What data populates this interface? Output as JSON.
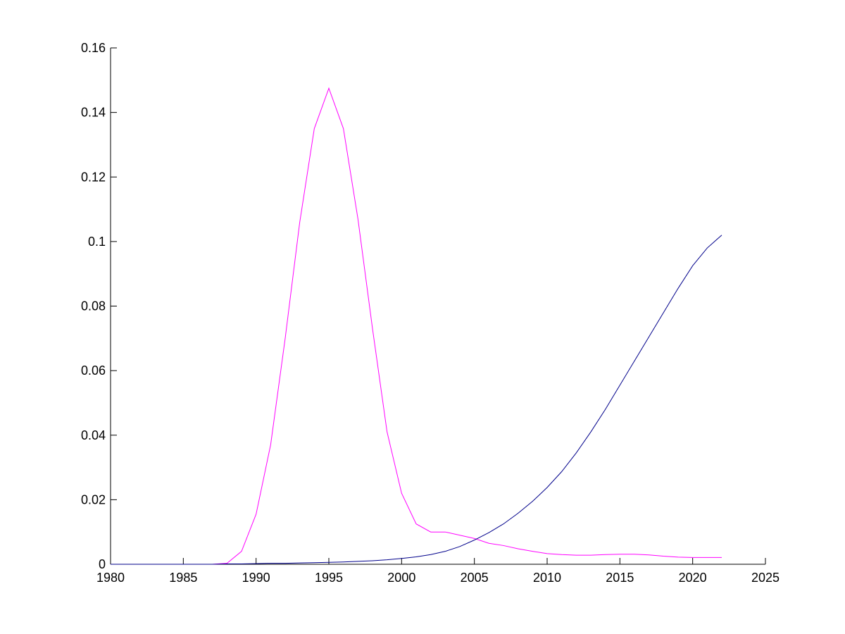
{
  "chart_data": {
    "type": "line",
    "title": "",
    "xlabel": "",
    "ylabel": "",
    "xlim": [
      1980,
      2025
    ],
    "ylim": [
      0,
      0.16
    ],
    "grid": false,
    "xticks": [
      1980,
      1985,
      1990,
      1995,
      2000,
      2005,
      2010,
      2015,
      2020,
      2025
    ],
    "xtick_labels": [
      "1980",
      "1985",
      "1990",
      "1995",
      "2000",
      "2005",
      "2010",
      "2015",
      "2020",
      "2025"
    ],
    "yticks": [
      0,
      0.02,
      0.04,
      0.06,
      0.08,
      0.1,
      0.12,
      0.14,
      0.16
    ],
    "ytick_labels": [
      "0",
      "0.02",
      "0.04",
      "0.06",
      "0.08",
      "0.1",
      "0.12",
      "0.14",
      "0.16"
    ],
    "series": [
      {
        "color": "#ff00ff",
        "x": [
          1980,
          1981,
          1982,
          1983,
          1984,
          1985,
          1986,
          1987,
          1988,
          1989,
          1990,
          1991,
          1992,
          1993,
          1994,
          1995,
          1996,
          1997,
          1998,
          1999,
          2000,
          2001,
          2002,
          2003,
          2004,
          2005,
          2006,
          2007,
          2008,
          2009,
          2010,
          2011,
          2012,
          2013,
          2014,
          2015,
          2016,
          2017,
          2018,
          2019,
          2020,
          2021,
          2022
        ],
        "y": [
          0,
          0,
          0,
          0,
          0,
          0,
          0,
          0,
          0.0003,
          0.004,
          0.0155,
          0.037,
          0.07,
          0.106,
          0.135,
          0.1475,
          0.135,
          0.107,
          0.073,
          0.041,
          0.022,
          0.0125,
          0.01,
          0.01,
          0.009,
          0.008,
          0.0065,
          0.0058,
          0.0048,
          0.004,
          0.0033,
          0.003,
          0.0028,
          0.0028,
          0.003,
          0.0031,
          0.0031,
          0.0029,
          0.0025,
          0.0022,
          0.0021,
          0.0021,
          0.0021
        ]
      },
      {
        "color": "#00008b",
        "x": [
          1980,
          1981,
          1982,
          1983,
          1984,
          1985,
          1986,
          1987,
          1988,
          1989,
          1990,
          1991,
          1992,
          1993,
          1994,
          1995,
          1996,
          1997,
          1998,
          1999,
          2000,
          2001,
          2002,
          2003,
          2004,
          2005,
          2006,
          2007,
          2008,
          2009,
          2010,
          2011,
          2012,
          2013,
          2014,
          2015,
          2016,
          2017,
          2018,
          2019,
          2020,
          2021,
          2022
        ],
        "y": [
          0,
          0,
          0,
          0,
          0,
          0,
          0,
          0,
          0.0001,
          0.0001,
          0.0002,
          0.0003,
          0.0003,
          0.0004,
          0.0005,
          0.0006,
          0.0007,
          0.0009,
          0.0011,
          0.0014,
          0.0018,
          0.0023,
          0.003,
          0.004,
          0.0055,
          0.0075,
          0.0098,
          0.0125,
          0.0158,
          0.0195,
          0.0238,
          0.0287,
          0.0345,
          0.041,
          0.048,
          0.0555,
          0.063,
          0.0705,
          0.078,
          0.0855,
          0.0925,
          0.098,
          0.102
        ]
      }
    ]
  }
}
